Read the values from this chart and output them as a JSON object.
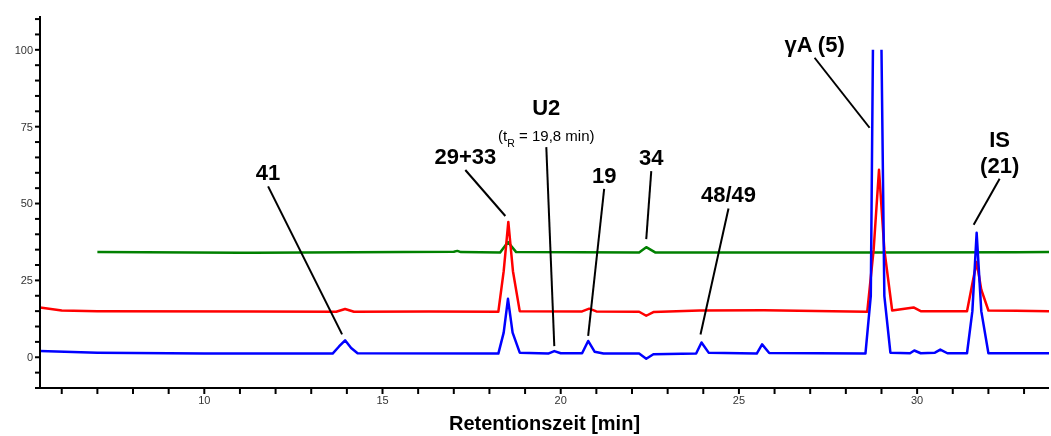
{
  "chart_data": {
    "type": "line",
    "xlabel": "Retentionszeit [min]",
    "xlim": [
      5.39,
      33.7
    ],
    "ylim": [
      -10,
      111
    ],
    "xticks": [
      {
        "value": 6,
        "label": null
      },
      {
        "value": 7,
        "label": null
      },
      {
        "value": 8,
        "label": null
      },
      {
        "value": 9,
        "label": null
      },
      10,
      {
        "value": 11,
        "label": null
      },
      {
        "value": 12,
        "label": null
      },
      {
        "value": 13,
        "label": null
      },
      {
        "value": 14,
        "label": null
      },
      15,
      {
        "value": 16,
        "label": null
      },
      {
        "value": 17,
        "label": null
      },
      {
        "value": 18,
        "label": null
      },
      {
        "value": 19,
        "label": null
      },
      20,
      {
        "value": 21,
        "label": null
      },
      {
        "value": 22,
        "label": null
      },
      {
        "value": 23,
        "label": null
      },
      {
        "value": 24,
        "label": null
      },
      25,
      {
        "value": 26,
        "label": null
      },
      {
        "value": 27,
        "label": null
      },
      {
        "value": 28,
        "label": null
      },
      {
        "value": 29,
        "label": null
      },
      30,
      {
        "value": 31,
        "label": null
      },
      {
        "value": 32,
        "label": null
      },
      {
        "value": 33,
        "label": null
      }
    ],
    "yticks": [
      {
        "value": -10,
        "label": null
      },
      {
        "value": -5,
        "label": null
      },
      0,
      {
        "value": 5,
        "label": null
      },
      {
        "value": 10,
        "label": null
      },
      {
        "value": 15,
        "label": null
      },
      {
        "value": 20,
        "label": null
      },
      25,
      {
        "value": 30,
        "label": null
      },
      {
        "value": 35,
        "label": null
      },
      {
        "value": 40,
        "label": null
      },
      {
        "value": 45,
        "label": null
      },
      50,
      {
        "value": 55,
        "label": null
      },
      {
        "value": 60,
        "label": null
      },
      {
        "value": 65,
        "label": null
      },
      {
        "value": 70,
        "label": null
      },
      75,
      {
        "value": 80,
        "label": null
      },
      {
        "value": 85,
        "label": null
      },
      {
        "value": 90,
        "label": null
      },
      {
        "value": 95,
        "label": null
      },
      100,
      {
        "value": 105,
        "label": null
      },
      {
        "value": 110,
        "label": null
      }
    ],
    "marker": "none",
    "line_style": "solid",
    "series": [
      {
        "color": "#008000",
        "x": [
          7,
          11,
          17,
          17.1,
          17.2,
          18.3,
          18.52,
          18.75,
          22.2,
          22.4,
          22.65,
          28.7,
          33.7
        ],
        "values": [
          34.2,
          34,
          34.3,
          34.6,
          34.2,
          34.1,
          37.5,
          34.2,
          34.1,
          35.8,
          34.1,
          34.1,
          34.2
        ]
      },
      {
        "color": "#ff0000",
        "x": [
          5.39,
          6,
          7,
          13.7,
          13.95,
          14.2,
          16.3,
          18.25,
          18.4,
          18.53,
          18.66,
          18.85,
          20.6,
          20.8,
          21,
          22.2,
          22.4,
          22.6,
          23.9,
          25.7,
          28.6,
          28.78,
          28.93,
          29.08,
          29.3,
          29.9,
          30.1,
          31.4,
          31.55,
          31.67,
          31.8,
          32,
          33.7
        ],
        "values": [
          16.2,
          15.2,
          15,
          14.8,
          15.7,
          14.8,
          14.9,
          14.8,
          28,
          44,
          28,
          15,
          14.9,
          15.8,
          14.9,
          14.8,
          13.5,
          14.7,
          15.2,
          15.3,
          14.8,
          35,
          61,
          35,
          15.2,
          16.2,
          15,
          15,
          24,
          31,
          22,
          15.2,
          15
        ]
      },
      {
        "color": "#0000ff",
        "x": [
          5.39,
          7,
          10,
          13.6,
          13.78,
          13.95,
          14.12,
          14.3,
          18.25,
          18.4,
          18.52,
          18.65,
          18.85,
          19.65,
          19.82,
          20,
          20.6,
          20.77,
          20.95,
          21.2,
          22.2,
          22.4,
          22.6,
          23.8,
          23.95,
          24.15,
          25.5,
          25.65,
          25.85,
          28.55,
          28.7,
          28.76,
          28.88,
          29.0,
          29.08,
          29.25,
          29.8,
          29.92,
          30.1,
          30.5,
          30.65,
          30.85,
          31.4,
          31.55,
          31.67,
          31.8,
          32,
          33.7
        ],
        "values": [
          2,
          1.5,
          1.2,
          1.2,
          3.5,
          5.5,
          3,
          1.3,
          1.2,
          8,
          19,
          8,
          1.5,
          1.2,
          2,
          1.3,
          1.3,
          5.3,
          1.8,
          1.2,
          1.2,
          -0.5,
          1,
          1.2,
          4.8,
          1.5,
          1.2,
          4.2,
          1.4,
          1.2,
          20,
          100,
          null,
          100,
          20,
          1.5,
          1.3,
          2.2,
          1.3,
          1.5,
          2.5,
          1.3,
          1.3,
          15,
          40.5,
          15,
          1.3,
          1.3
        ]
      }
    ],
    "annotations": [
      {
        "text": "41",
        "x": 13.95,
        "y": 5.5
      },
      {
        "text": "29+33",
        "x": 18.53,
        "y": 44
      },
      {
        "text": "U2\n(t$_{R}$ = 19,8 min)",
        "x": 19.82,
        "y": 2
      },
      {
        "text": "19",
        "x": 20.77,
        "y": 5.3
      },
      {
        "text": "34",
        "x": 22.4,
        "y": 35.8
      },
      {
        "text": "48/49",
        "x": 23.95,
        "y": 4.8
      },
      {
        "text": "γA (5)",
        "x": 28.75,
        "y": 74
      },
      {
        "text": "IS\n(21)",
        "x": 31.67,
        "y": 40.5
      }
    ]
  }
}
